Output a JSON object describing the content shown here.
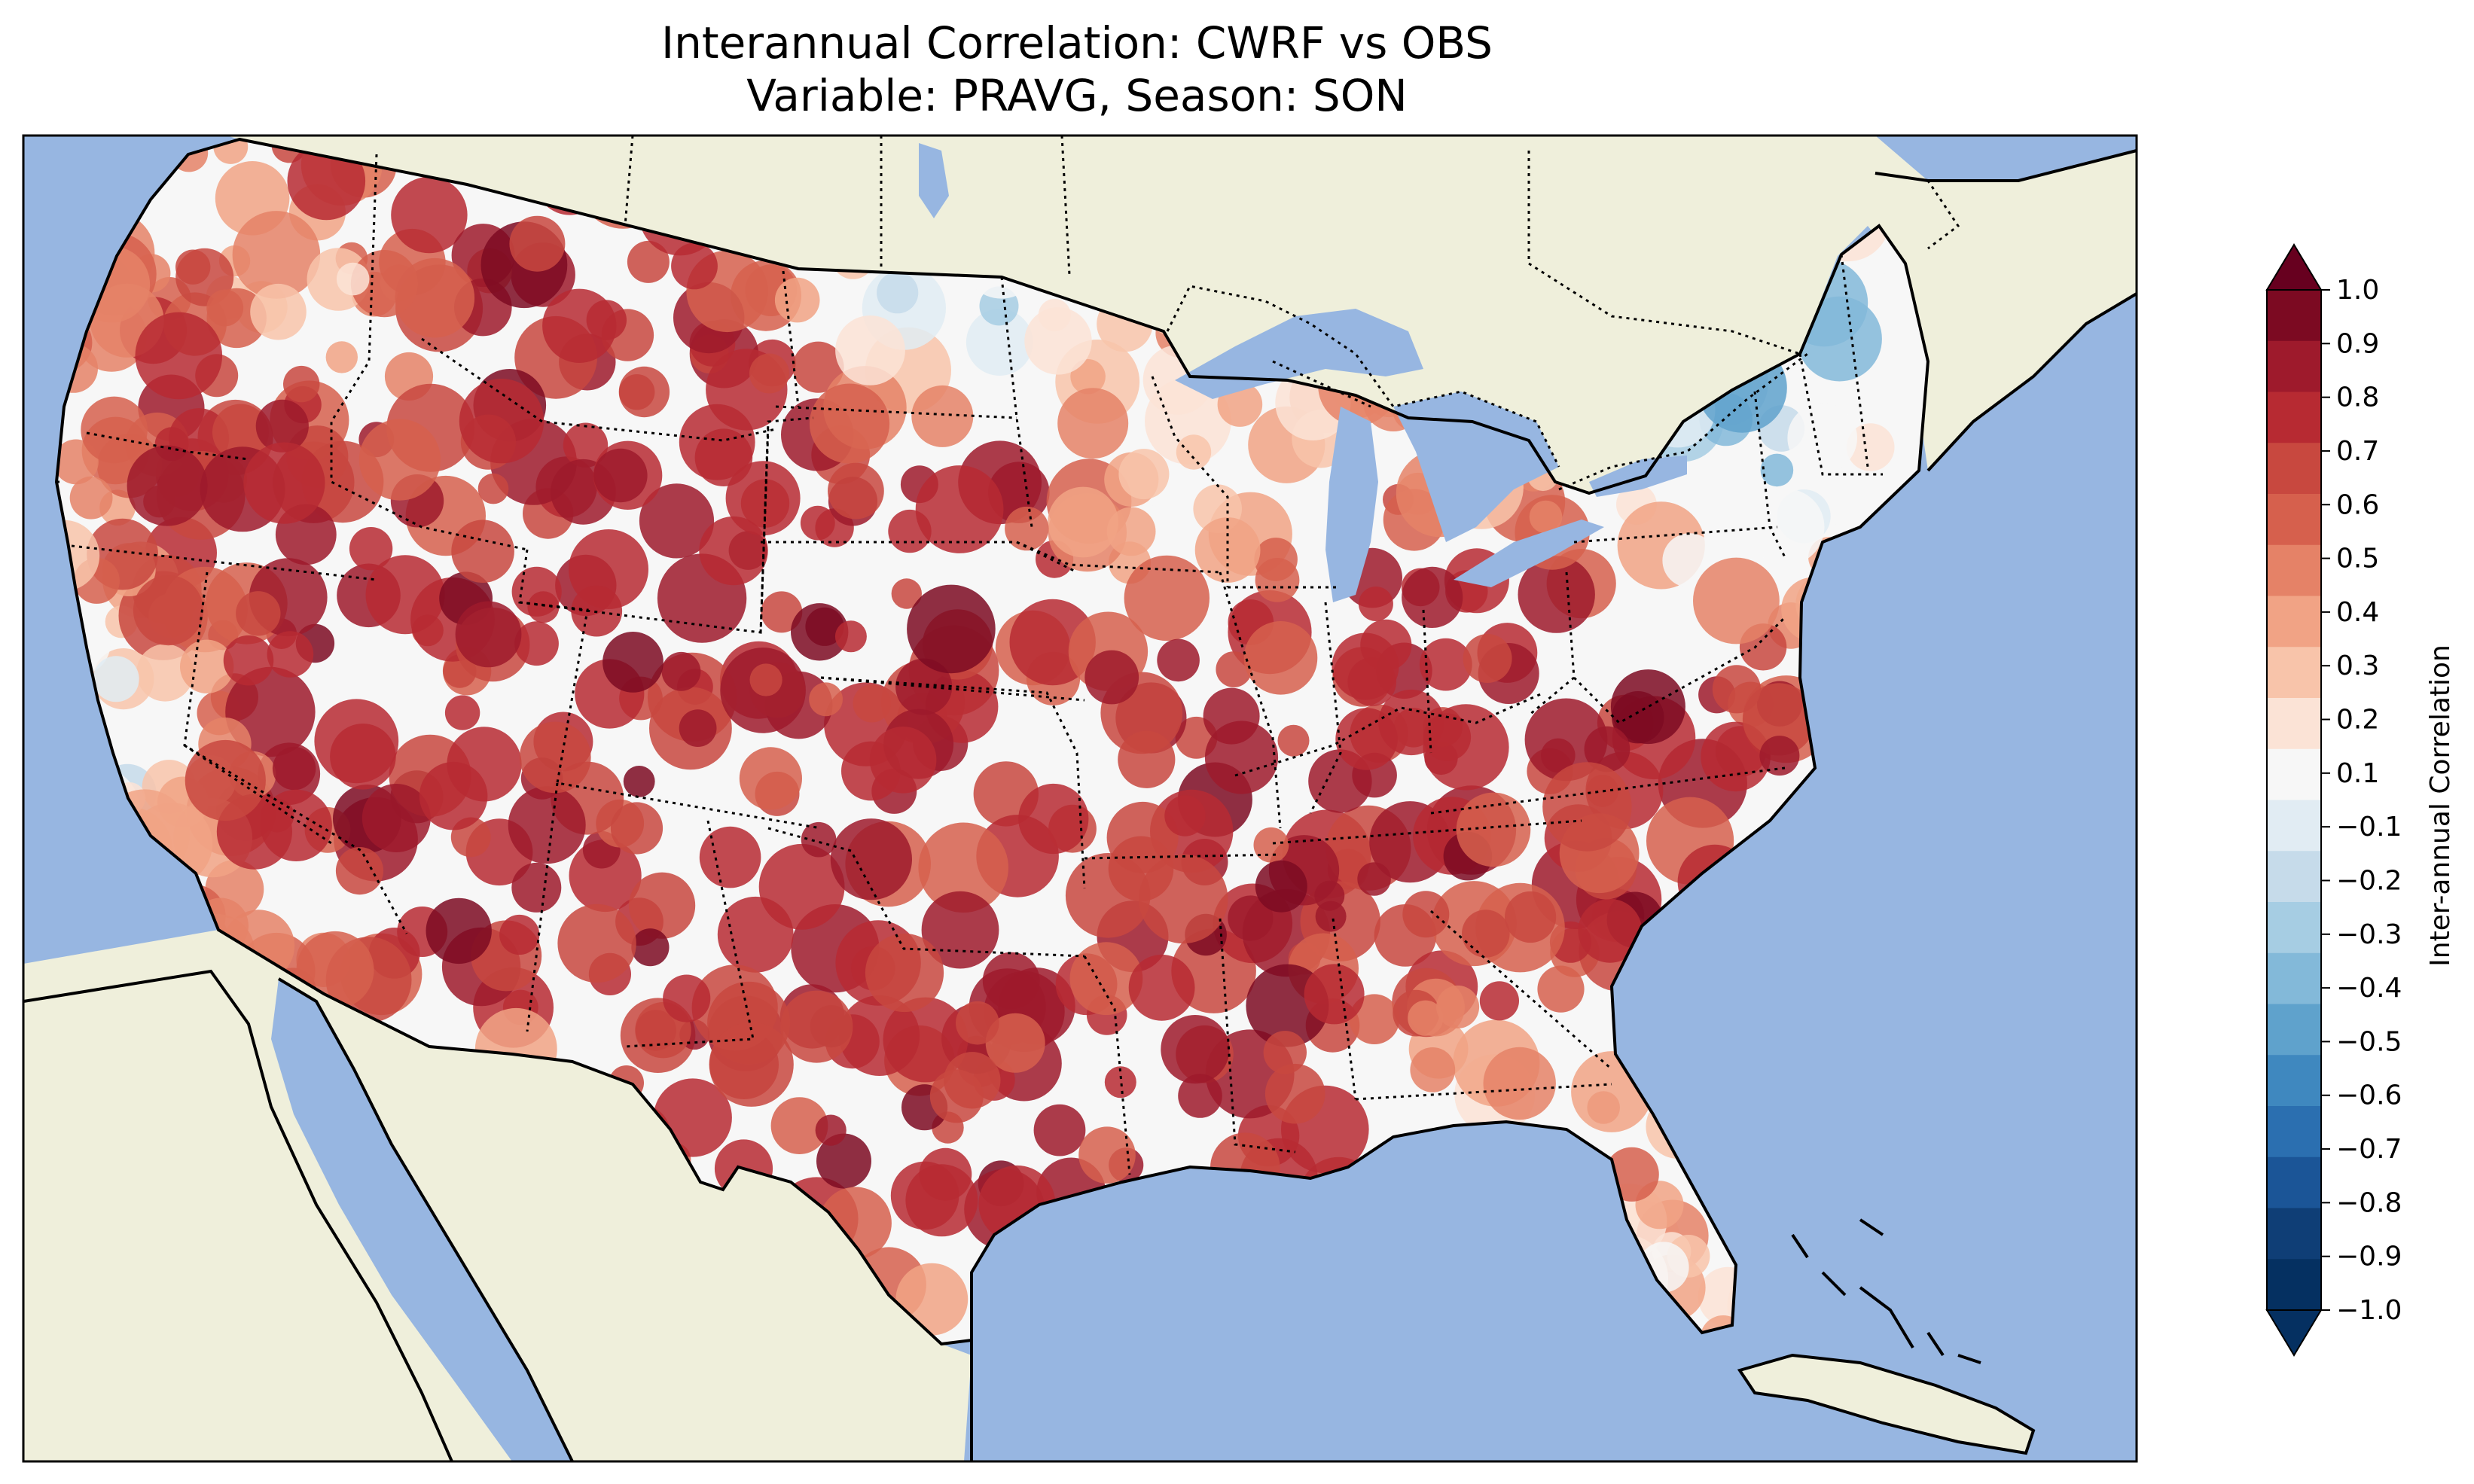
{
  "title": {
    "line1": "Interannual Correlation: CWRF vs OBS",
    "line2": "Variable: PRAVG, Season: SON"
  },
  "map": {
    "ocean_color": "#97b6e1",
    "land_color": "#efefdb",
    "border_color": "#000000"
  },
  "colorbar": {
    "label": "Inter-annual Correlation",
    "ticks": [
      "1.0",
      "0.9",
      "0.8",
      "0.7",
      "0.6",
      "0.5",
      "0.4",
      "0.3",
      "0.2",
      "0.1",
      "−0.1",
      "−0.2",
      "−0.3",
      "−0.4",
      "−0.5",
      "−0.6",
      "−0.7",
      "−0.8",
      "−0.9",
      "−1.0"
    ],
    "colors": [
      "#67001f",
      "#7c0a22",
      "#9e1a2c",
      "#b72a32",
      "#c8483f",
      "#d6604d",
      "#e58267",
      "#f1a385",
      "#f8c4aa",
      "#fbe3d6",
      "#f7f7f7",
      "#e1ecf3",
      "#c6dbea",
      "#a6cde3",
      "#83b9d9",
      "#5fa2cc",
      "#3f88bf",
      "#2b6fb0",
      "#1b5597",
      "#0f3e76",
      "#053061"
    ]
  }
}
